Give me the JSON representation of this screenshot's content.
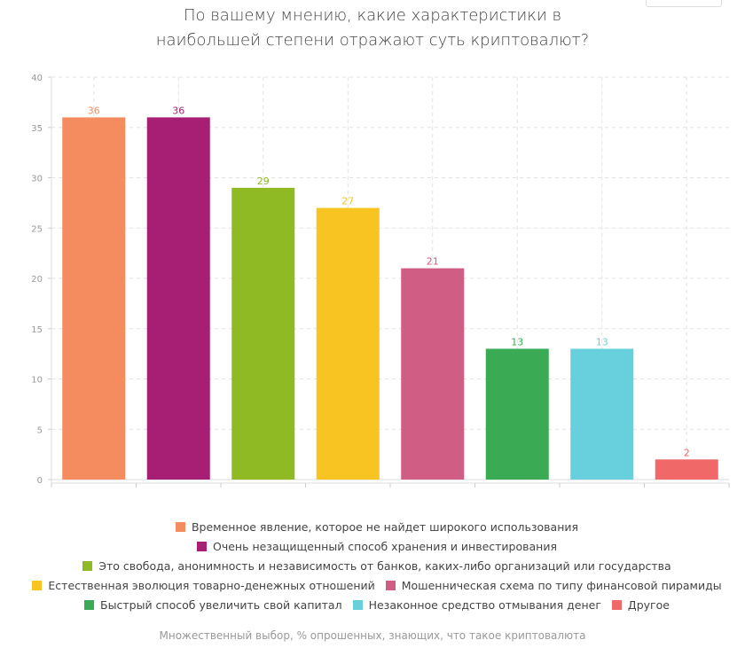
{
  "chart_data": {
    "type": "bar",
    "title": "По вашему мнению, какие характеристики в наибольшей степени отражают суть криптовалют?",
    "title_lines": [
      "По вашему мнению, какие характеристики в",
      "наибольшей степени отражают суть криптовалют?"
    ],
    "categories": [
      "Временное явление, которое не найдет широкого использования",
      "Очень незащищенный способ хранения и инвестирования",
      "Это свобода, анонимность и независимость от банков, каких-либо организаций или государства",
      "Естественная эволюция товарно-денежных отношений",
      "Мошенническая схема по типу финансовой пирамиды",
      "Быстрый способ увеличить свой капитал",
      "Незаконное средство отмывания денег",
      "Другое"
    ],
    "values": [
      36,
      36,
      29,
      27,
      21,
      13,
      13,
      2
    ],
    "colors": [
      "#f58c5f",
      "#a61f74",
      "#8fba24",
      "#f8c421",
      "#d05d84",
      "#3aaa55",
      "#67d0dc",
      "#f06868"
    ],
    "ylim": [
      0,
      40
    ],
    "yticks": [
      0,
      5,
      10,
      15,
      20,
      25,
      30,
      35,
      40
    ],
    "grid": true,
    "legend_position": "bottom",
    "xlabel": "",
    "ylabel": "",
    "note": "Множественный выбор, % опрошенных, знающих, что такое криптовалюта"
  }
}
